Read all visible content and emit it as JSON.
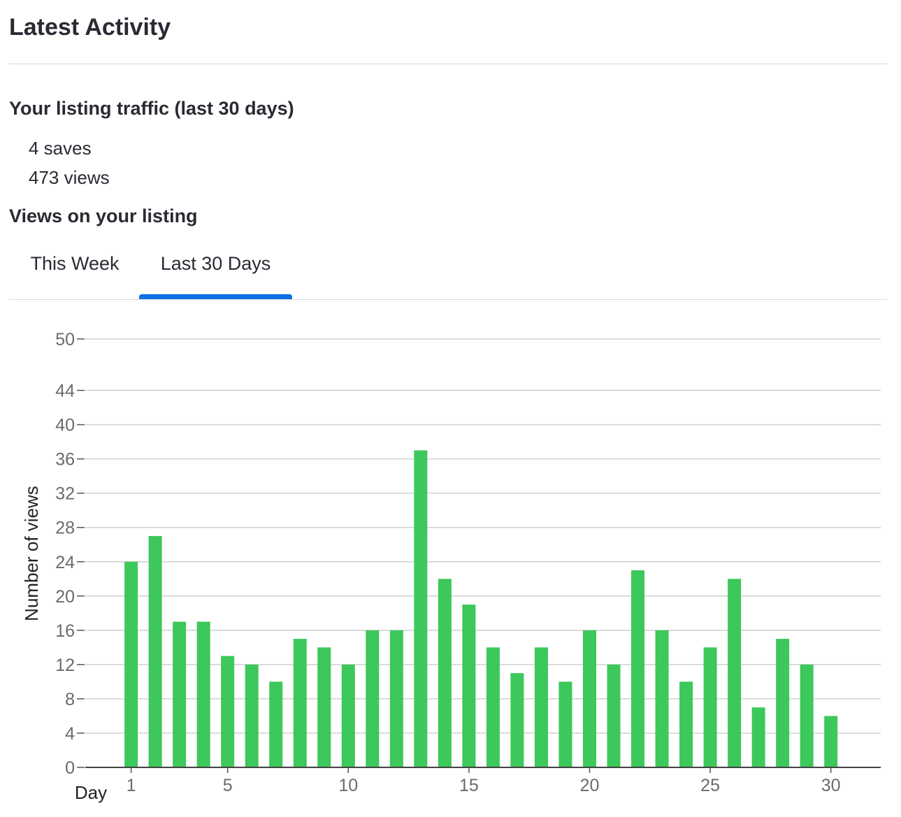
{
  "header": {
    "title": "Latest Activity"
  },
  "traffic": {
    "heading": "Your listing traffic (last 30 days)",
    "saves": "4 saves",
    "views": "473 views"
  },
  "views_section": {
    "heading": "Views on your listing",
    "tabs": [
      {
        "label": "This Week",
        "active": false
      },
      {
        "label": "Last 30 Days",
        "active": true
      }
    ]
  },
  "colors": {
    "bar": "#3cc85a",
    "tab_active": "#0e6ee6",
    "grid": "#d0d0d0"
  },
  "chart_data": {
    "type": "bar",
    "x": [
      1,
      2,
      3,
      4,
      5,
      6,
      7,
      8,
      9,
      10,
      11,
      12,
      13,
      14,
      15,
      16,
      17,
      18,
      19,
      20,
      21,
      22,
      23,
      24,
      25,
      26,
      27,
      28,
      29,
      30
    ],
    "values": [
      24,
      27,
      17,
      17,
      13,
      12,
      10,
      15,
      14,
      12,
      16,
      16,
      37,
      22,
      19,
      14,
      11,
      14,
      10,
      16,
      12,
      23,
      16,
      10,
      14,
      22,
      7,
      15,
      12,
      6
    ],
    "xticks": [
      1,
      5,
      10,
      15,
      20,
      25,
      30
    ],
    "yticks": [
      0,
      4,
      8,
      12,
      16,
      20,
      24,
      28,
      32,
      36,
      40,
      44,
      50
    ],
    "ylim": [
      0,
      50
    ],
    "xlabel": "Day",
    "ylabel": "Number of views",
    "grid": true
  }
}
